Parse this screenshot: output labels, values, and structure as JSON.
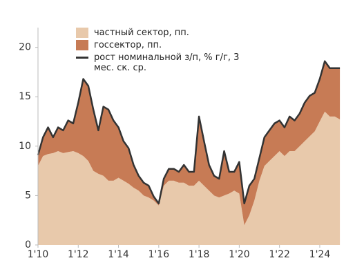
{
  "chart_data": {
    "type": "stacked-area-line",
    "x": [
      2010,
      2010.25,
      2010.5,
      2010.75,
      2011,
      2011.25,
      2011.5,
      2011.75,
      2012,
      2012.25,
      2012.5,
      2012.75,
      2013,
      2013.25,
      2013.5,
      2013.75,
      2014,
      2014.25,
      2014.5,
      2014.75,
      2015,
      2015.25,
      2015.5,
      2015.75,
      2016,
      2016.25,
      2016.5,
      2016.75,
      2017,
      2017.25,
      2017.5,
      2017.75,
      2018,
      2018.25,
      2018.5,
      2018.75,
      2019,
      2019.25,
      2019.5,
      2019.75,
      2020,
      2020.25,
      2020.5,
      2020.75,
      2021,
      2021.25,
      2021.5,
      2021.75,
      2022,
      2022.25,
      2022.5,
      2022.75,
      2023,
      2023.25,
      2023.5,
      2023.75,
      2024,
      2024.25,
      2024.5,
      2024.75,
      2025
    ],
    "series": [
      {
        "name": "частный сектор, пп.",
        "color": "#e8c9ab",
        "stack": true,
        "values": [
          8.0,
          9.0,
          9.2,
          9.3,
          9.5,
          9.3,
          9.4,
          9.5,
          9.3,
          9.0,
          8.5,
          7.5,
          7.2,
          7.0,
          6.5,
          6.5,
          6.8,
          6.5,
          6.2,
          5.8,
          5.5,
          5.0,
          4.8,
          4.5,
          4.0,
          6.0,
          6.5,
          6.5,
          6.3,
          6.3,
          6.0,
          6.0,
          6.5,
          6.0,
          5.5,
          5.0,
          4.8,
          5.0,
          5.2,
          5.5,
          5.2,
          2.0,
          3.0,
          4.5,
          6.5,
          8.0,
          8.5,
          9.0,
          9.5,
          9.0,
          9.5,
          9.5,
          10.0,
          10.5,
          11.0,
          11.5,
          12.5,
          13.5,
          13.0,
          13.0,
          12.7
        ]
      },
      {
        "name": "госсектор, пп.",
        "color": "#c77b55",
        "stack": true,
        "values": [
          1.1,
          1.9,
          2.7,
          1.6,
          2.4,
          2.3,
          3.2,
          2.8,
          5.1,
          7.8,
          7.6,
          6.2,
          4.4,
          7.0,
          7.2,
          6.1,
          5.1,
          4.0,
          3.6,
          2.3,
          1.5,
          1.3,
          1.2,
          0.4,
          0.2,
          0.7,
          1.2,
          1.2,
          1.1,
          1.8,
          1.4,
          1.4,
          6.5,
          4.5,
          2.6,
          2.0,
          1.9,
          4.5,
          2.2,
          1.9,
          3.2,
          2.2,
          3.0,
          2.2,
          2.3,
          2.9,
          3.1,
          3.3,
          3.1,
          2.9,
          3.5,
          3.1,
          3.3,
          3.9,
          4.1,
          3.9,
          4.3,
          5.1,
          4.9,
          4.9,
          5.2
        ]
      },
      {
        "name": "рост номинальной з/п, % г/г, 3 мес. ск. ср.",
        "color": "#333333",
        "stack": false,
        "values": [
          9.1,
          10.9,
          11.9,
          10.9,
          11.9,
          11.6,
          12.6,
          12.3,
          14.4,
          16.8,
          16.1,
          13.7,
          11.6,
          14.0,
          13.7,
          12.6,
          11.9,
          10.5,
          9.8,
          8.1,
          7.0,
          6.3,
          6.0,
          4.9,
          4.2,
          6.7,
          7.7,
          7.7,
          7.4,
          8.1,
          7.4,
          7.4,
          13.0,
          10.5,
          8.1,
          7.0,
          6.7,
          9.5,
          7.4,
          7.4,
          8.4,
          4.2,
          6.0,
          6.7,
          8.8,
          10.9,
          11.6,
          12.3,
          12.6,
          11.9,
          13.0,
          12.6,
          13.3,
          14.4,
          15.1,
          15.4,
          16.8,
          18.6,
          17.9,
          17.9,
          17.9
        ]
      }
    ],
    "xlim": [
      2010,
      2025.1
    ],
    "xticks": [
      {
        "value": 2010,
        "label": "1'10"
      },
      {
        "value": 2012,
        "label": "1'12"
      },
      {
        "value": 2014,
        "label": "1'14"
      },
      {
        "value": 2016,
        "label": "1'16"
      },
      {
        "value": 2018,
        "label": "1'18"
      },
      {
        "value": 2020,
        "label": "1'20"
      },
      {
        "value": 2022,
        "label": "1'22"
      },
      {
        "value": 2024,
        "label": "1'24"
      }
    ],
    "ylim": [
      0,
      22
    ],
    "yticks": [
      0,
      5,
      10,
      15,
      20
    ],
    "grid": false,
    "legend": "top-left"
  }
}
